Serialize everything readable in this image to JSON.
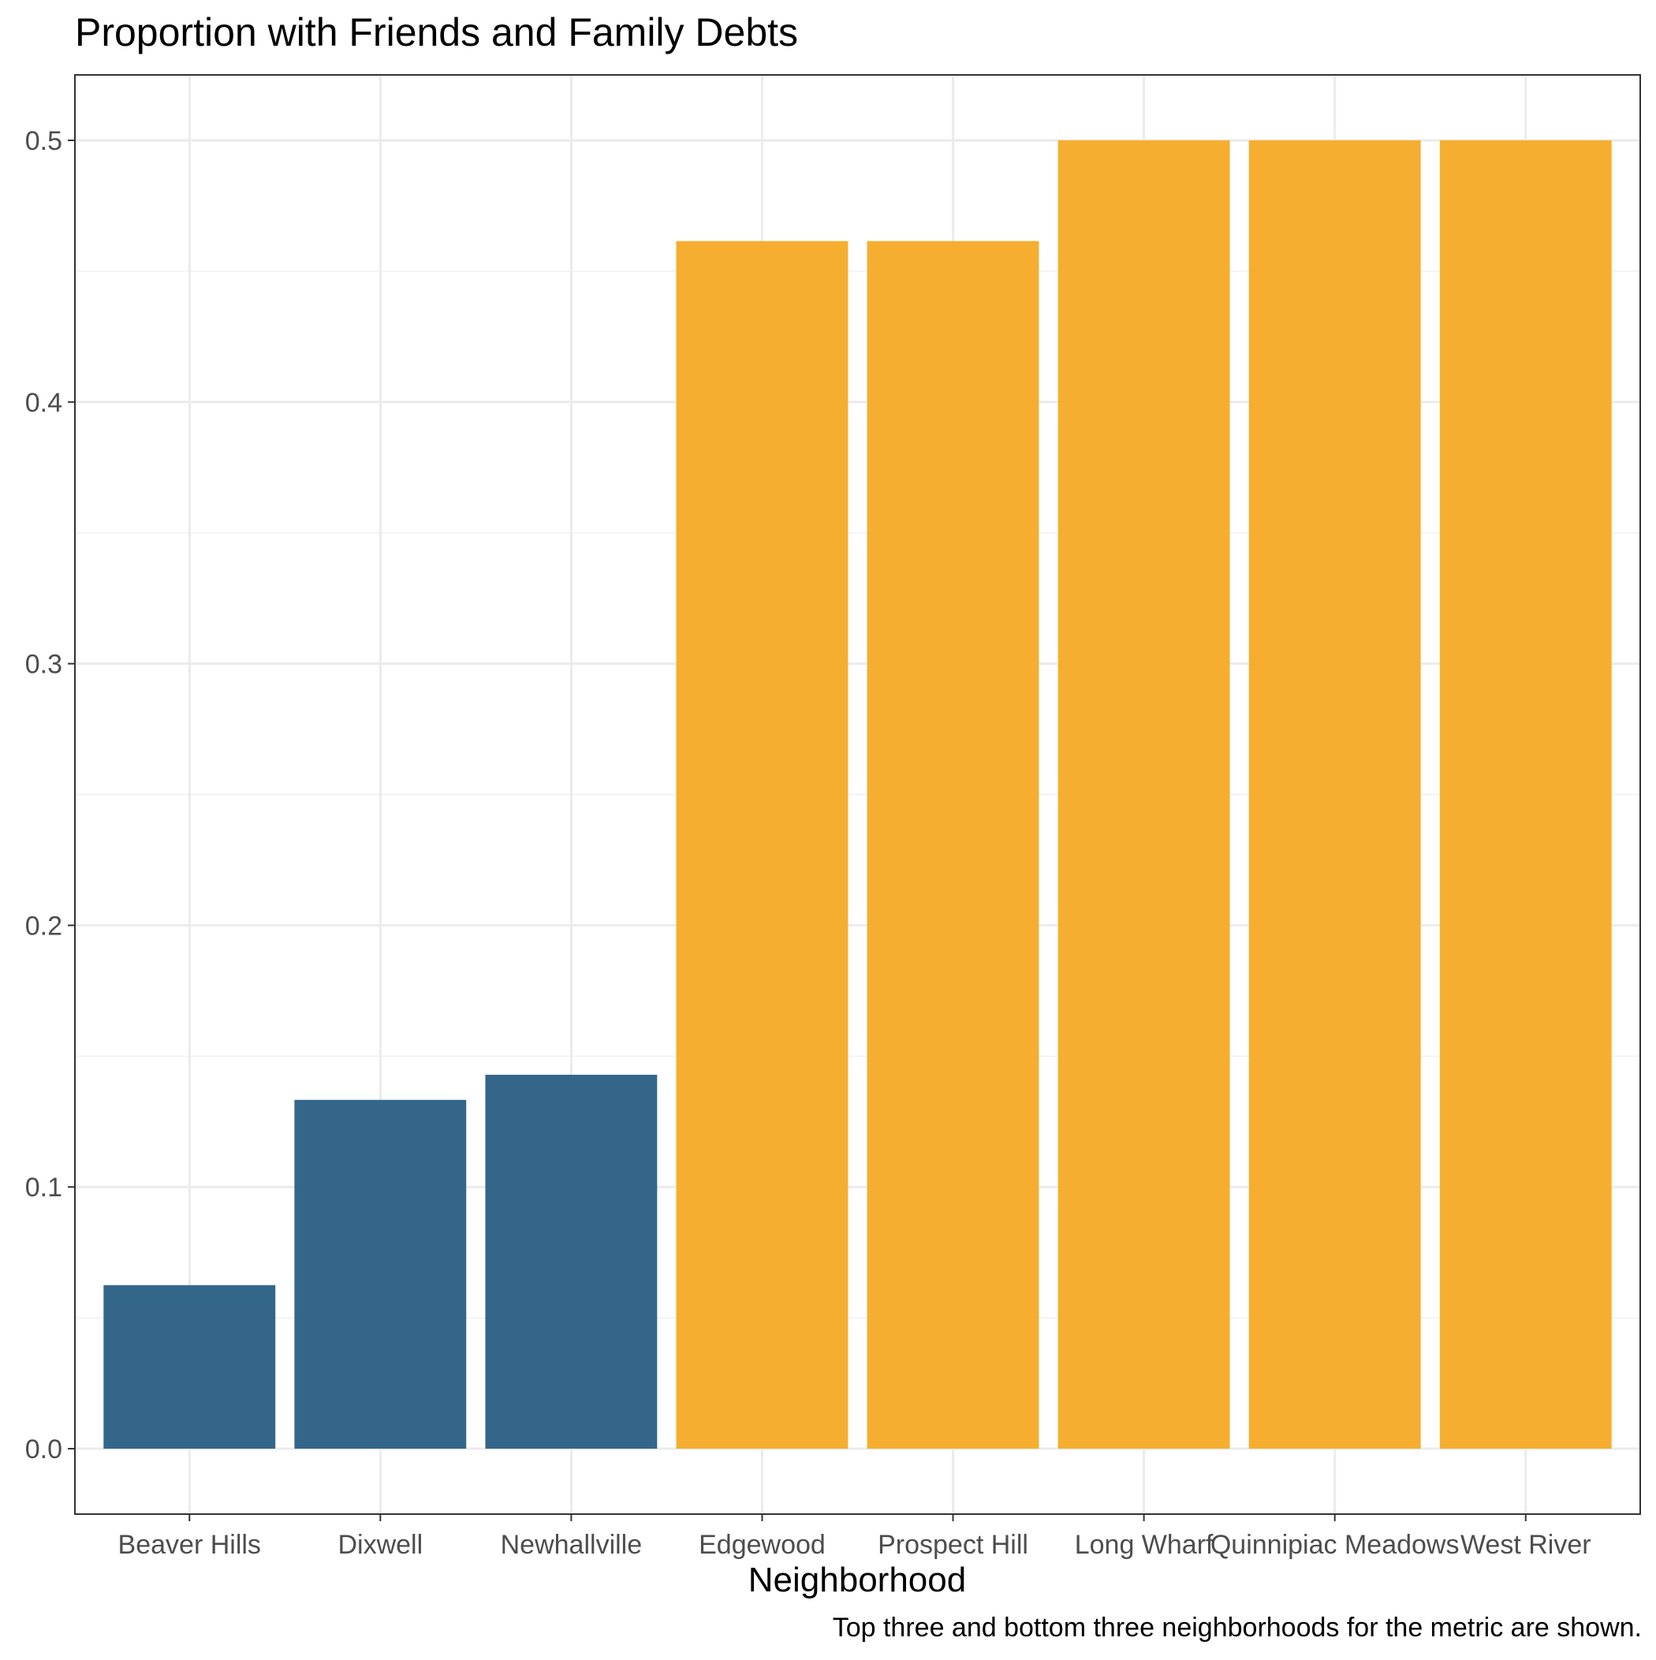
{
  "chart_data": {
    "type": "bar",
    "title": "Proportion with Friends and Family Debts",
    "xlabel": "Neighborhood",
    "ylabel": "",
    "caption": "Top three and bottom three neighborhoods for the metric are shown.",
    "categories": [
      "Beaver Hills",
      "Dixwell",
      "Newhallville",
      "Edgewood",
      "Prospect Hill",
      "Long Wharf",
      "Quinnipiac Meadows",
      "West River"
    ],
    "values": [
      0.0625,
      0.1333,
      0.1429,
      0.4615,
      0.4615,
      0.5,
      0.5,
      0.5
    ],
    "groups": [
      "bottom",
      "bottom",
      "bottom",
      "top",
      "top",
      "top",
      "top",
      "top"
    ],
    "colors": {
      "bottom": "#336689",
      "top": "#f5ae2f"
    },
    "ylim": [
      -0.025,
      0.525
    ],
    "yticks": [
      "0.0",
      "0.1",
      "0.2",
      "0.3",
      "0.4",
      "0.5"
    ],
    "grid": true,
    "legend": "none"
  }
}
